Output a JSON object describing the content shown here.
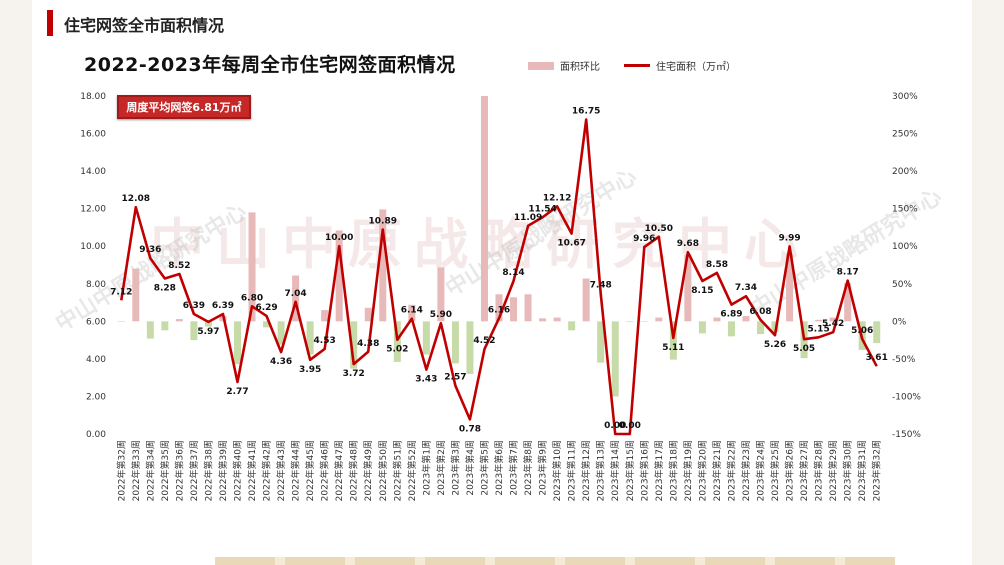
{
  "header": {
    "section_title": "住宅网签全市面积情况"
  },
  "chart_data": {
    "type": "bar+line",
    "title": "2022-2023年每周全市住宅网签面积情况",
    "legend": [
      "面积环比",
      "住宅面积（万㎡）"
    ],
    "annotation": "周度平均网签6.81万㎡",
    "watermark": "中山中原战略研究中心",
    "y_left": {
      "min": 0,
      "max": 18,
      "ticks": [
        "0.00",
        "2.00",
        "4.00",
        "6.00",
        "8.00",
        "10.00",
        "12.00",
        "14.00",
        "16.00",
        "18.00"
      ]
    },
    "y_right": {
      "min": -150,
      "max": 300,
      "ticks": [
        "-150%",
        "-100%",
        "-50%",
        "0%",
        "50%",
        "100%",
        "150%",
        "200%",
        "250%",
        "300%"
      ]
    },
    "categories": [
      "2022年第32周",
      "2022年第33周",
      "2022年第34周",
      "2022年第35周",
      "2022年第36周",
      "2022年第37周",
      "2022年第38周",
      "2022年第39周",
      "2022年第40周",
      "2022年第41周",
      "2022年第42周",
      "2022年第43周",
      "2022年第44周",
      "2022年第45周",
      "2022年第46周",
      "2022年第47周",
      "2022年第48周",
      "2022年第49周",
      "2022年第50周",
      "2022年第51周",
      "2022年第52周",
      "2023年第1周",
      "2023年第2周",
      "2023年第3周",
      "2023年第4周",
      "2023年第5周",
      "2023年第6周",
      "2023年第7周",
      "2023年第8周",
      "2023年第9周",
      "2023年第10周",
      "2023年第11周",
      "2023年第12周",
      "2023年第13周",
      "2023年第14周",
      "2023年第15周",
      "2023年第16周",
      "2023年第17周",
      "2023年第18周",
      "2023年第19周",
      "2023年第20周",
      "2023年第21周",
      "2023年第22周",
      "2023年第23周",
      "2023年第24周",
      "2023年第25周",
      "2023年第26周",
      "2023年第27周",
      "2023年第28周",
      "2023年第29周",
      "2023年第30周",
      "2023年第31周",
      "2023年第32周"
    ],
    "area_values": [
      7.12,
      12.08,
      9.36,
      8.28,
      8.52,
      6.39,
      5.97,
      6.39,
      2.77,
      6.8,
      6.29,
      4.36,
      7.04,
      3.95,
      4.53,
      10.0,
      3.72,
      4.38,
      10.89,
      5.02,
      6.14,
      3.43,
      5.9,
      2.57,
      0.78,
      4.52,
      6.16,
      8.14,
      11.09,
      11.54,
      12.12,
      10.67,
      16.75,
      7.48,
      0.0,
      0.0,
      9.96,
      10.5,
      5.11,
      9.68,
      8.15,
      8.58,
      6.89,
      7.34,
      6.08,
      5.26,
      9.99,
      5.05,
      5.15,
      5.42,
      8.17,
      5.06,
      3.61
    ],
    "area_labels": [
      "7.12",
      "12.08",
      "9.36",
      "8.28",
      "8.52",
      "6.39",
      "5.97",
      "6.39",
      "2.77",
      "6.80",
      "6.29",
      "4.36",
      "7.04",
      "3.95",
      "4.53",
      "10.00",
      "3.72",
      "4.38",
      "10.89",
      "5.02",
      "6.14",
      "3.43",
      "5.90",
      "2.57",
      "0.78",
      "4.52",
      "6.16",
      "8.14",
      "11.09",
      "11.54",
      "12.12",
      "10.67",
      "16.75",
      "7.48",
      "0.00",
      "0.00",
      "9.96",
      "10.50",
      "5.11",
      "9.68",
      "8.15",
      "8.58",
      "6.89",
      "7.34",
      "6.08",
      "5.26",
      "9.99",
      "5.05",
      "5.15",
      "5.42",
      "8.17",
      "5.06",
      "3.61"
    ],
    "mom_pct": [
      0,
      70,
      -23,
      -12,
      3,
      -25,
      -7,
      7,
      -57,
      145,
      -8,
      -31,
      61,
      -44,
      15,
      121,
      -63,
      18,
      149,
      -54,
      22,
      -44,
      72,
      -56,
      -70,
      480,
      36,
      32,
      36,
      4,
      5,
      -12,
      57,
      -55,
      -100,
      0,
      0,
      5,
      -51,
      89,
      -16,
      5,
      -20,
      7,
      -17,
      -14,
      90,
      -49,
      2,
      5,
      51,
      -38,
      -29
    ]
  }
}
